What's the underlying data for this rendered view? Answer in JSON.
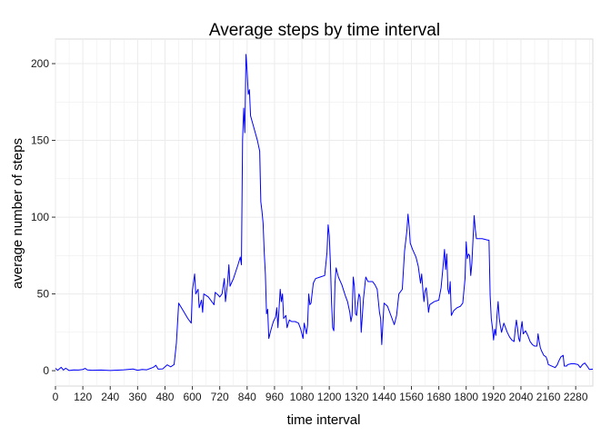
{
  "chart_data": {
    "type": "line",
    "title": "Average steps by time interval",
    "xlabel": "time interval",
    "ylabel": "average number of steps",
    "xlim": [
      0,
      2355
    ],
    "ylim": [
      -10,
      216
    ],
    "grid": true,
    "x_ticks": [
      0,
      120,
      240,
      360,
      480,
      600,
      720,
      840,
      960,
      1080,
      1200,
      1320,
      1440,
      1560,
      1680,
      1800,
      1920,
      2040,
      2160,
      2280
    ],
    "y_ticks": [
      0,
      50,
      100,
      150,
      200
    ],
    "colors": {
      "line": "#0000ff",
      "grid": "#ebebeb",
      "panel_border": "#d9d9d9"
    },
    "series": [
      {
        "values": [
          [
            0,
            1.5
          ],
          [
            10,
            0.3
          ],
          [
            25,
            2.2
          ],
          [
            35,
            0.4
          ],
          [
            45,
            1.6
          ],
          [
            60,
            0.1
          ],
          [
            80,
            0.5
          ],
          [
            100,
            0.4
          ],
          [
            120,
            0.8
          ],
          [
            130,
            1.5
          ],
          [
            140,
            0.5
          ],
          [
            160,
            0.3
          ],
          [
            200,
            0.4
          ],
          [
            240,
            0.1
          ],
          [
            300,
            0.6
          ],
          [
            340,
            1.1
          ],
          [
            360,
            0.3
          ],
          [
            380,
            0.8
          ],
          [
            400,
            0.6
          ],
          [
            420,
            1.7
          ],
          [
            430,
            2.3
          ],
          [
            440,
            3.5
          ],
          [
            450,
            1.0
          ],
          [
            470,
            1.2
          ],
          [
            490,
            3.8
          ],
          [
            505,
            2.5
          ],
          [
            520,
            4.0
          ],
          [
            530,
            18.0
          ],
          [
            540,
            44.0
          ],
          [
            560,
            39.0
          ],
          [
            580,
            34.0
          ],
          [
            595,
            31.0
          ],
          [
            600,
            52.0
          ],
          [
            610,
            63.0
          ],
          [
            615,
            50.0
          ],
          [
            625,
            53.0
          ],
          [
            630,
            41.0
          ],
          [
            640,
            46.0
          ],
          [
            645,
            38.0
          ],
          [
            650,
            50.0
          ],
          [
            670,
            48.0
          ],
          [
            680,
            46.0
          ],
          [
            695,
            43.0
          ],
          [
            700,
            51.0
          ],
          [
            715,
            49.0
          ],
          [
            720,
            48.0
          ],
          [
            730,
            50.0
          ],
          [
            740,
            60.0
          ],
          [
            745,
            45.0
          ],
          [
            755,
            58.0
          ],
          [
            760,
            69.0
          ],
          [
            765,
            55.0
          ],
          [
            780,
            60.0
          ],
          [
            800,
            69.0
          ],
          [
            810,
            74.0
          ],
          [
            815,
            69.0
          ],
          [
            820,
            150.0
          ],
          [
            825,
            171.0
          ],
          [
            830,
            155.0
          ],
          [
            835,
            206.0
          ],
          [
            840,
            195.0
          ],
          [
            845,
            180.0
          ],
          [
            850,
            183.0
          ],
          [
            855,
            166.0
          ],
          [
            870,
            158.0
          ],
          [
            885,
            150.0
          ],
          [
            895,
            143.0
          ],
          [
            900,
            110.0
          ],
          [
            905,
            104.0
          ],
          [
            910,
            96.0
          ],
          [
            915,
            77.0
          ],
          [
            920,
            63.0
          ],
          [
            925,
            37.0
          ],
          [
            930,
            40.0
          ],
          [
            935,
            21.0
          ],
          [
            945,
            27.0
          ],
          [
            955,
            32.0
          ],
          [
            965,
            35.0
          ],
          [
            970,
            41.0
          ],
          [
            975,
            28.0
          ],
          [
            985,
            53.0
          ],
          [
            990,
            45.0
          ],
          [
            995,
            50.0
          ],
          [
            1000,
            34.0
          ],
          [
            1010,
            36.0
          ],
          [
            1015,
            28.0
          ],
          [
            1025,
            33.0
          ],
          [
            1035,
            32.0
          ],
          [
            1050,
            32.0
          ],
          [
            1065,
            31.0
          ],
          [
            1075,
            27.0
          ],
          [
            1085,
            21.0
          ],
          [
            1090,
            31.0
          ],
          [
            1100,
            24.0
          ],
          [
            1105,
            30.0
          ],
          [
            1110,
            50.0
          ],
          [
            1115,
            43.0
          ],
          [
            1120,
            44.0
          ],
          [
            1130,
            57.0
          ],
          [
            1140,
            60.0
          ],
          [
            1160,
            61.0
          ],
          [
            1180,
            62.0
          ],
          [
            1190,
            77.0
          ],
          [
            1195,
            95.0
          ],
          [
            1200,
            88.0
          ],
          [
            1205,
            70.0
          ],
          [
            1210,
            44.0
          ],
          [
            1215,
            28.0
          ],
          [
            1220,
            26.0
          ],
          [
            1225,
            57.0
          ],
          [
            1230,
            67.0
          ],
          [
            1240,
            61.0
          ],
          [
            1255,
            56.0
          ],
          [
            1270,
            49.0
          ],
          [
            1280,
            45.0
          ],
          [
            1290,
            38.0
          ],
          [
            1295,
            32.0
          ],
          [
            1300,
            36.0
          ],
          [
            1305,
            61.0
          ],
          [
            1310,
            55.0
          ],
          [
            1315,
            37.0
          ],
          [
            1320,
            36.0
          ],
          [
            1325,
            44.0
          ],
          [
            1330,
            50.0
          ],
          [
            1335,
            48.0
          ],
          [
            1340,
            25.0
          ],
          [
            1350,
            47.0
          ],
          [
            1360,
            61.0
          ],
          [
            1370,
            58.0
          ],
          [
            1390,
            58.0
          ],
          [
            1400,
            56.0
          ],
          [
            1410,
            53.0
          ],
          [
            1420,
            38.0
          ],
          [
            1425,
            34.0
          ],
          [
            1430,
            17.0
          ],
          [
            1435,
            31.0
          ],
          [
            1440,
            44.0
          ],
          [
            1455,
            42.0
          ],
          [
            1475,
            34.0
          ],
          [
            1485,
            30.0
          ],
          [
            1495,
            36.0
          ],
          [
            1505,
            50.0
          ],
          [
            1520,
            53.0
          ],
          [
            1530,
            78.0
          ],
          [
            1540,
            91.0
          ],
          [
            1545,
            102.0
          ],
          [
            1550,
            94.0
          ],
          [
            1555,
            83.0
          ],
          [
            1565,
            79.0
          ],
          [
            1580,
            74.0
          ],
          [
            1590,
            68.0
          ],
          [
            1600,
            57.0
          ],
          [
            1605,
            63.0
          ],
          [
            1610,
            53.0
          ],
          [
            1615,
            45.0
          ],
          [
            1620,
            52.0
          ],
          [
            1625,
            54.0
          ],
          [
            1630,
            47.0
          ],
          [
            1635,
            38.0
          ],
          [
            1640,
            43.0
          ],
          [
            1660,
            45.0
          ],
          [
            1680,
            46.0
          ],
          [
            1690,
            54.0
          ],
          [
            1700,
            70.0
          ],
          [
            1705,
            79.0
          ],
          [
            1710,
            66.0
          ],
          [
            1715,
            76.0
          ],
          [
            1720,
            53.0
          ],
          [
            1725,
            50.0
          ],
          [
            1730,
            58.0
          ],
          [
            1735,
            36.0
          ],
          [
            1745,
            39.0
          ],
          [
            1760,
            41.0
          ],
          [
            1775,
            42.0
          ],
          [
            1785,
            44.0
          ],
          [
            1795,
            60.0
          ],
          [
            1800,
            84.0
          ],
          [
            1805,
            73.0
          ],
          [
            1810,
            76.0
          ],
          [
            1815,
            75.0
          ],
          [
            1820,
            62.0
          ],
          [
            1825,
            70.0
          ],
          [
            1835,
            101.0
          ],
          [
            1840,
            92.0
          ],
          [
            1845,
            86.0
          ],
          [
            1870,
            86.0
          ],
          [
            1895,
            85.0
          ],
          [
            1900,
            85.0
          ],
          [
            1905,
            49.0
          ],
          [
            1910,
            34.0
          ],
          [
            1915,
            28.0
          ],
          [
            1920,
            20.0
          ],
          [
            1925,
            27.0
          ],
          [
            1930,
            23.0
          ],
          [
            1935,
            36.0
          ],
          [
            1940,
            45.0
          ],
          [
            1945,
            34.0
          ],
          [
            1950,
            29.0
          ],
          [
            1955,
            25.0
          ],
          [
            1965,
            31.0
          ],
          [
            1970,
            29.0
          ],
          [
            1980,
            25.0
          ],
          [
            1990,
            22.0
          ],
          [
            2000,
            20.0
          ],
          [
            2010,
            19.0
          ],
          [
            2015,
            27.0
          ],
          [
            2020,
            33.0
          ],
          [
            2025,
            28.0
          ],
          [
            2030,
            21.0
          ],
          [
            2035,
            19.0
          ],
          [
            2040,
            27.0
          ],
          [
            2045,
            32.0
          ],
          [
            2050,
            24.0
          ],
          [
            2060,
            26.0
          ],
          [
            2070,
            23.0
          ],
          [
            2080,
            19.0
          ],
          [
            2090,
            17.0
          ],
          [
            2100,
            16.0
          ],
          [
            2110,
            16.0
          ],
          [
            2115,
            24.0
          ],
          [
            2120,
            19.0
          ],
          [
            2125,
            15.0
          ],
          [
            2130,
            13.0
          ],
          [
            2140,
            10.0
          ],
          [
            2150,
            9.0
          ],
          [
            2155,
            7.0
          ],
          [
            2160,
            4.0
          ],
          [
            2175,
            3.0
          ],
          [
            2190,
            2.0
          ],
          [
            2200,
            4.0
          ],
          [
            2205,
            6.0
          ],
          [
            2215,
            9.0
          ],
          [
            2225,
            10.0
          ],
          [
            2230,
            3.0
          ],
          [
            2240,
            3.0
          ],
          [
            2245,
            4.0
          ],
          [
            2260,
            4.5
          ],
          [
            2275,
            4.5
          ],
          [
            2290,
            4.0
          ],
          [
            2300,
            2.0
          ],
          [
            2310,
            4.0
          ],
          [
            2320,
            5.0
          ],
          [
            2330,
            3.0
          ],
          [
            2340,
            0.8
          ],
          [
            2355,
            1.0
          ]
        ]
      }
    ]
  }
}
